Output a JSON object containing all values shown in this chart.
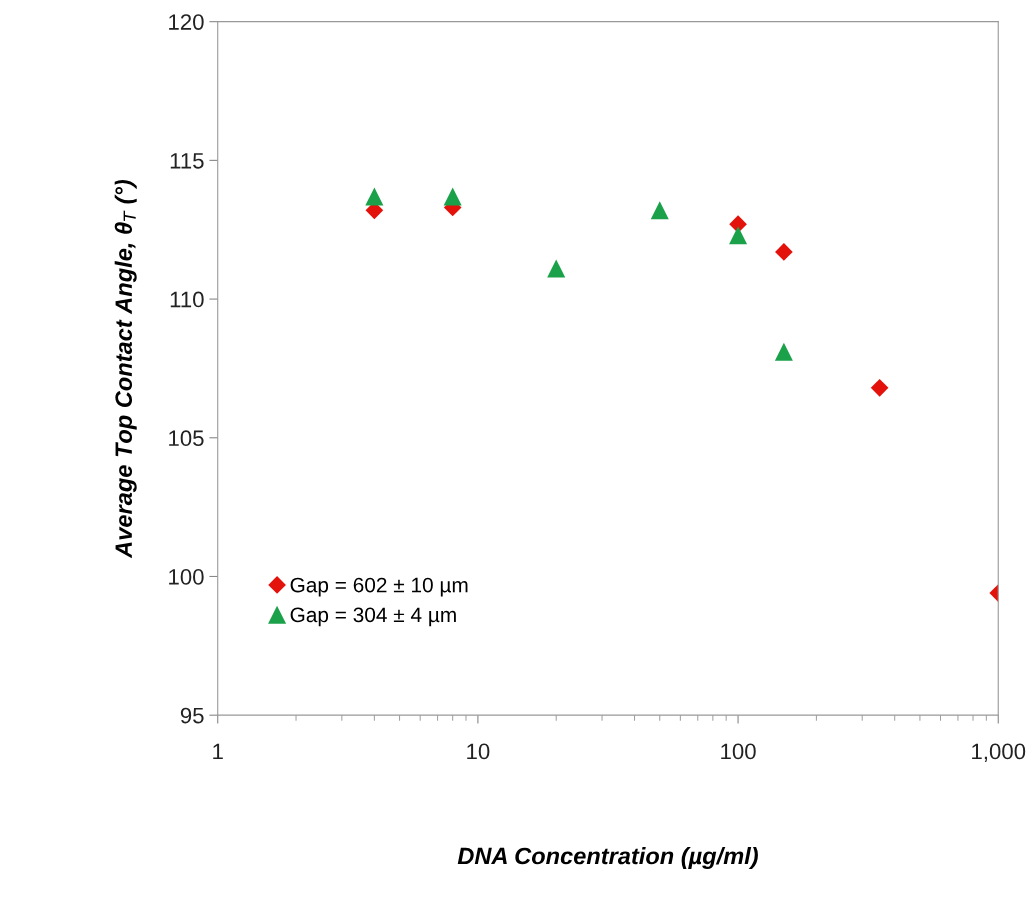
{
  "chart_data": {
    "type": "scatter",
    "xlabel": "DNA Concentration (µg/ml)",
    "ylabel": "Average Top Contact Angle, θ$_{T}$ (°)",
    "log": "x",
    "xlim": [
      1,
      1000
    ],
    "xticks": [
      1,
      10,
      100,
      {
        "value": 1000,
        "label": "1,000"
      }
    ],
    "ylim": [
      95,
      120
    ],
    "yticks": [
      95,
      100,
      105,
      110,
      115,
      120
    ],
    "grid": false,
    "legend": "bottom left",
    "series": [
      {
        "name": "Gap = 602 ± 10 µm",
        "color": "#e3120b",
        "marker": "diamond",
        "x": [
          4,
          8,
          100,
          150,
          350,
          1000
        ],
        "values": [
          113.2,
          113.3,
          112.7,
          111.7,
          106.8,
          99.4
        ]
      },
      {
        "name": "Gap = 304 ± 4 µm",
        "color": "#1aa14a",
        "marker": "triangle",
        "x": [
          4,
          8,
          20,
          50,
          100,
          150
        ],
        "values": [
          113.7,
          113.7,
          111.1,
          113.2,
          112.3,
          108.1
        ]
      }
    ]
  }
}
